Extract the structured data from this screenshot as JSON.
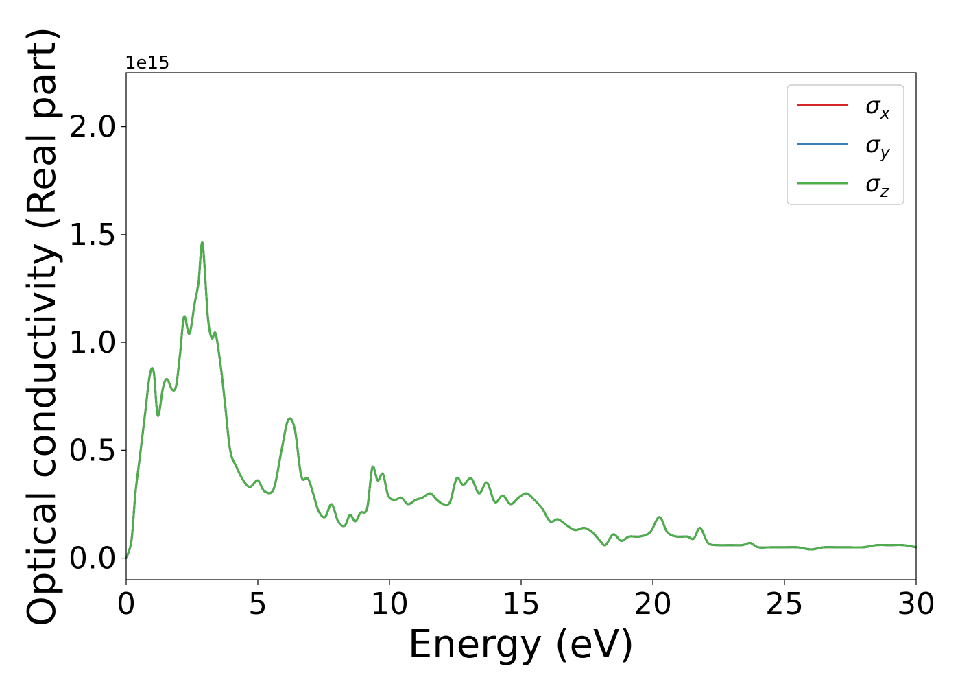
{
  "chart_data": {
    "type": "line",
    "title": "",
    "xlabel": "Energy (eV)",
    "ylabel": "Optical conductivity (Real part)",
    "y_offset_label": "1e15",
    "xlim": [
      0,
      30
    ],
    "ylim": [
      -0.1,
      2.25
    ],
    "y_scale_factor": "1e15",
    "grid": false,
    "legend_position": "top-right",
    "xticks": [
      0,
      5,
      10,
      15,
      20,
      25,
      30
    ],
    "xtick_labels": [
      "0",
      "5",
      "10",
      "15",
      "20",
      "25",
      "30"
    ],
    "yticks": [
      0.0,
      0.5,
      1.0,
      1.5,
      2.0
    ],
    "ytick_labels": [
      "0.0",
      "0.5",
      "1.0",
      "1.5",
      "2.0"
    ],
    "x": [
      0,
      0.2,
      0.35,
      0.5,
      0.7,
      0.9,
      1.05,
      1.2,
      1.4,
      1.55,
      1.75,
      1.9,
      2.05,
      2.2,
      2.4,
      2.6,
      2.75,
      2.9,
      3.1,
      3.25,
      3.4,
      3.6,
      3.75,
      3.95,
      4.2,
      4.45,
      4.7,
      5.0,
      5.25,
      5.6,
      5.9,
      6.15,
      6.4,
      6.65,
      6.9,
      7.1,
      7.3,
      7.55,
      7.8,
      8.05,
      8.3,
      8.5,
      8.7,
      8.9,
      9.15,
      9.35,
      9.55,
      9.75,
      9.95,
      10.2,
      10.45,
      10.7,
      11.0,
      11.25,
      11.55,
      11.8,
      12.05,
      12.3,
      12.55,
      12.8,
      13.1,
      13.4,
      13.7,
      14.0,
      14.3,
      14.6,
      14.9,
      15.2,
      15.5,
      15.8,
      16.1,
      16.4,
      16.75,
      17.05,
      17.4,
      17.7,
      18.0,
      18.2,
      18.5,
      18.8,
      19.1,
      19.5,
      19.9,
      20.25,
      20.55,
      20.9,
      21.3,
      21.55,
      21.8,
      22.1,
      22.5,
      23.0,
      23.4,
      23.7,
      24.0,
      24.5,
      25.0,
      25.5,
      26.0,
      26.5,
      27.0,
      27.5,
      28.0,
      28.5,
      29.0,
      29.5,
      30.0
    ],
    "series": [
      {
        "name": "σx",
        "legend_symbol": "σ",
        "legend_subscript": "x",
        "color": "#d62728",
        "values": [
          0.0,
          0.08,
          0.3,
          0.45,
          0.65,
          0.85,
          0.86,
          0.66,
          0.79,
          0.83,
          0.78,
          0.8,
          0.95,
          1.12,
          1.04,
          1.18,
          1.28,
          1.46,
          1.12,
          1.02,
          1.04,
          0.88,
          0.72,
          0.5,
          0.42,
          0.36,
          0.33,
          0.36,
          0.31,
          0.32,
          0.5,
          0.64,
          0.6,
          0.38,
          0.37,
          0.3,
          0.22,
          0.19,
          0.25,
          0.17,
          0.15,
          0.2,
          0.17,
          0.21,
          0.23,
          0.42,
          0.36,
          0.39,
          0.29,
          0.27,
          0.28,
          0.25,
          0.27,
          0.28,
          0.3,
          0.27,
          0.25,
          0.26,
          0.37,
          0.34,
          0.37,
          0.3,
          0.35,
          0.26,
          0.29,
          0.25,
          0.28,
          0.3,
          0.27,
          0.23,
          0.17,
          0.18,
          0.15,
          0.13,
          0.14,
          0.12,
          0.08,
          0.06,
          0.11,
          0.08,
          0.1,
          0.1,
          0.12,
          0.19,
          0.12,
          0.1,
          0.1,
          0.09,
          0.14,
          0.07,
          0.06,
          0.06,
          0.06,
          0.07,
          0.05,
          0.05,
          0.05,
          0.05,
          0.04,
          0.05,
          0.05,
          0.05,
          0.05,
          0.06,
          0.06,
          0.06,
          0.05
        ]
      },
      {
        "name": "σy",
        "legend_symbol": "σ",
        "legend_subscript": "y",
        "color": "#377eb8",
        "values": [
          0.0,
          0.08,
          0.3,
          0.45,
          0.65,
          0.85,
          0.86,
          0.66,
          0.79,
          0.83,
          0.78,
          0.8,
          0.95,
          1.12,
          1.04,
          1.18,
          1.28,
          1.46,
          1.12,
          1.02,
          1.04,
          0.88,
          0.72,
          0.5,
          0.42,
          0.36,
          0.33,
          0.36,
          0.31,
          0.32,
          0.5,
          0.64,
          0.6,
          0.38,
          0.37,
          0.3,
          0.22,
          0.19,
          0.25,
          0.17,
          0.15,
          0.2,
          0.17,
          0.21,
          0.23,
          0.42,
          0.36,
          0.39,
          0.29,
          0.27,
          0.28,
          0.25,
          0.27,
          0.28,
          0.3,
          0.27,
          0.25,
          0.26,
          0.37,
          0.34,
          0.37,
          0.3,
          0.35,
          0.26,
          0.29,
          0.25,
          0.28,
          0.3,
          0.27,
          0.23,
          0.17,
          0.18,
          0.15,
          0.13,
          0.14,
          0.12,
          0.08,
          0.06,
          0.11,
          0.08,
          0.1,
          0.1,
          0.12,
          0.19,
          0.12,
          0.1,
          0.1,
          0.09,
          0.14,
          0.07,
          0.06,
          0.06,
          0.06,
          0.07,
          0.05,
          0.05,
          0.05,
          0.05,
          0.04,
          0.05,
          0.05,
          0.05,
          0.05,
          0.06,
          0.06,
          0.06,
          0.05
        ]
      },
      {
        "name": "σz",
        "legend_symbol": "σ",
        "legend_subscript": "z",
        "color": "#4daf4a",
        "values": [
          0.0,
          0.08,
          0.3,
          0.45,
          0.65,
          0.85,
          0.86,
          0.66,
          0.79,
          0.83,
          0.78,
          0.8,
          0.95,
          1.12,
          1.04,
          1.18,
          1.28,
          1.46,
          1.12,
          1.02,
          1.04,
          0.88,
          0.72,
          0.5,
          0.42,
          0.36,
          0.33,
          0.36,
          0.31,
          0.32,
          0.5,
          0.64,
          0.6,
          0.38,
          0.37,
          0.3,
          0.22,
          0.19,
          0.25,
          0.17,
          0.15,
          0.2,
          0.17,
          0.21,
          0.23,
          0.42,
          0.36,
          0.39,
          0.29,
          0.27,
          0.28,
          0.25,
          0.27,
          0.28,
          0.3,
          0.27,
          0.25,
          0.26,
          0.37,
          0.34,
          0.37,
          0.3,
          0.35,
          0.26,
          0.29,
          0.25,
          0.28,
          0.3,
          0.27,
          0.23,
          0.17,
          0.18,
          0.15,
          0.13,
          0.14,
          0.12,
          0.08,
          0.06,
          0.11,
          0.08,
          0.1,
          0.1,
          0.12,
          0.19,
          0.12,
          0.1,
          0.1,
          0.09,
          0.14,
          0.07,
          0.06,
          0.06,
          0.06,
          0.07,
          0.05,
          0.05,
          0.05,
          0.05,
          0.04,
          0.05,
          0.05,
          0.05,
          0.05,
          0.06,
          0.06,
          0.06,
          0.05
        ]
      }
    ]
  }
}
